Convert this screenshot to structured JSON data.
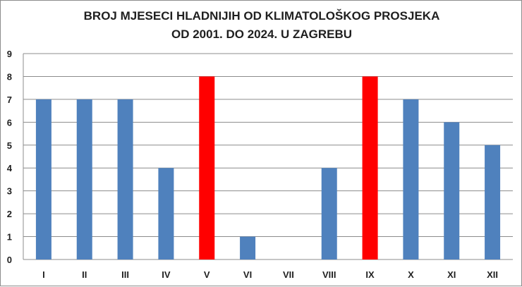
{
  "chart_data": {
    "type": "bar",
    "title_line1": "BROJ MJESECI HLADNIJIH OD KLIMATOLOŠKOG PROSJEKA",
    "title_line2": "OD 2001. DO 2024. U ZAGREBU",
    "categories": [
      "I",
      "II",
      "III",
      "IV",
      "V",
      "VI",
      "VII",
      "VIII",
      "IX",
      "X",
      "XI",
      "XII"
    ],
    "values": [
      7,
      7,
      7,
      4,
      8,
      1,
      0,
      4,
      8,
      7,
      6,
      5
    ],
    "highlight": [
      false,
      false,
      false,
      false,
      true,
      false,
      false,
      false,
      true,
      false,
      false,
      false
    ],
    "ylim": [
      0,
      9
    ],
    "yticks": [
      0,
      1,
      2,
      3,
      4,
      5,
      6,
      7,
      8,
      9
    ],
    "xlabel": "",
    "ylabel": "",
    "grid": true,
    "colors": {
      "bar": "#4f81bd",
      "highlight": "#ff0000",
      "grid": "#8c8c8c"
    }
  }
}
